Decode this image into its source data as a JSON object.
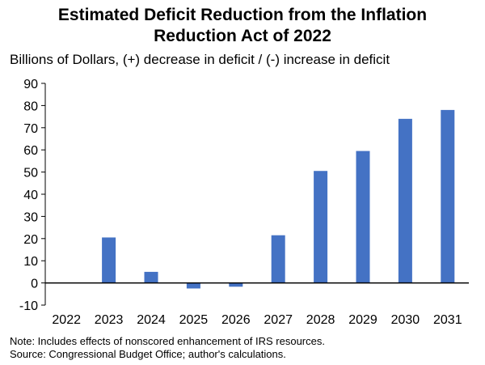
{
  "chart_data": {
    "type": "bar",
    "title_line1": "Estimated Deficit Reduction from the Inflation",
    "title_line2": "Reduction Act of 2022",
    "ylabel": "Billions of Dollars, (+) decrease in deficit / (-) increase in deficit",
    "categories": [
      "2022",
      "2023",
      "2024",
      "2025",
      "2026",
      "2027",
      "2028",
      "2029",
      "2030",
      "2031"
    ],
    "values": [
      0,
      20.5,
      5,
      -2.5,
      -1.7,
      21.5,
      50.5,
      59.5,
      74,
      78
    ],
    "ylim": [
      -10,
      90
    ],
    "yticks": [
      -10,
      0,
      10,
      20,
      30,
      40,
      50,
      60,
      70,
      80,
      90
    ],
    "bar_color": "#4472C4",
    "grid": false,
    "legend": "none"
  },
  "notes": {
    "line1": "Note: Includes effects of nonscored enhancement of IRS resources.",
    "line2": "Source: Congressional Budget Office; author's calculations."
  }
}
